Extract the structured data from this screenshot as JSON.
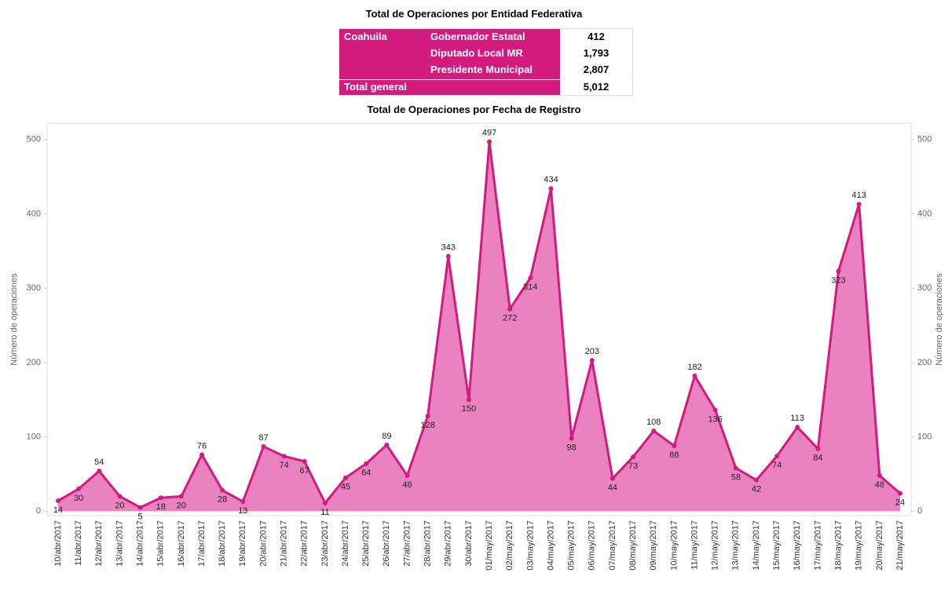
{
  "table": {
    "title": "Total de Operaciones por Entidad Federativa",
    "entity": "Coahuila",
    "rows": [
      [
        "Gobernador Estatal",
        "412"
      ],
      [
        "Diputado Local MR",
        "1,793"
      ],
      [
        "Presidente Municipal",
        "2,807"
      ]
    ],
    "total": [
      "Total general",
      "5,012"
    ]
  },
  "chart_data": {
    "type": "area",
    "title": "Total de Operaciones por Fecha de Registro",
    "y_label": "Número de operaciones",
    "y2_label": "Número de operaciones",
    "categories": [
      "10/abr/2017",
      "11/abr/2017",
      "12/abr/2017",
      "13/abr/2017",
      "14/abr/2017",
      "15/abr/2017",
      "16/abr/2017",
      "17/abr/2017",
      "18/abr/2017",
      "19/abr/2017",
      "20/abr/2017",
      "21/abr/2017",
      "22/abr/2017",
      "23/abr/2017",
      "24/abr/2017",
      "25/abr/2017",
      "26/abr/2017",
      "27/abr/2017",
      "28/abr/2017",
      "29/abr/2017",
      "30/abr/2017",
      "01/may/2017",
      "02/may/2017",
      "03/may/2017",
      "04/may/2017",
      "05/may/2017",
      "06/may/2017",
      "07/may/2017",
      "08/may/2017",
      "09/may/2017",
      "10/may/2017",
      "11/may/2017",
      "12/may/2017",
      "13/may/2017",
      "14/may/2017",
      "15/may/2017",
      "16/may/2017",
      "17/may/2017",
      "18/may/2017",
      "19/may/2017",
      "20/may/2017",
      "21/may/2017"
    ],
    "values": [
      14,
      30,
      54,
      20,
      5,
      18,
      20,
      76,
      28,
      13,
      87,
      74,
      67,
      11,
      45,
      64,
      89,
      48,
      128,
      343,
      150,
      497,
      272,
      314,
      434,
      98,
      203,
      44,
      73,
      108,
      88,
      182,
      136,
      58,
      42,
      74,
      113,
      84,
      323,
      413,
      48,
      24
    ],
    "color": "#d4197f",
    "fill": "#ea82c2",
    "ylim": [
      -6,
      522
    ],
    "yticks": [
      0,
      100,
      200,
      300,
      400,
      500
    ],
    "y2lim": [
      -6,
      522
    ],
    "y2ticks": [
      0,
      100,
      200,
      300,
      400,
      500
    ],
    "grid": false
  }
}
